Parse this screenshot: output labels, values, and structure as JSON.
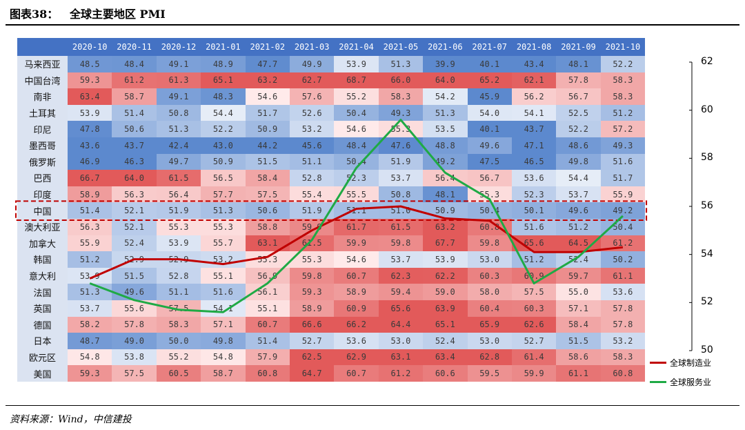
{
  "figure": {
    "title": "图表38：   全球主要地区 PMI",
    "source": "资料来源：Wind，中信建投"
  },
  "colors": {
    "header_bg": "#4472c4",
    "line_manufacturing": "#c00000",
    "line_services": "#1faa45",
    "highlight_box": "#c00000"
  },
  "chart_data": [
    {
      "type": "heatmap",
      "title": "全球主要地区 PMI",
      "columns": [
        "2020-10",
        "2020-11",
        "2020-12",
        "2021-01",
        "2021-02",
        "2021-03",
        "2021-04",
        "2021-05",
        "2021-06",
        "2021-07",
        "2021-08",
        "2021-09",
        "2021-10"
      ],
      "rows": [
        {
          "name": "马来西亚",
          "values": [
            48.5,
            48.4,
            49.1,
            48.9,
            47.7,
            49.9,
            53.9,
            51.3,
            39.9,
            40.1,
            43.4,
            48.1,
            52.2
          ]
        },
        {
          "name": "中国台湾",
          "values": [
            59.3,
            61.2,
            61.3,
            65.1,
            63.2,
            62.7,
            68.7,
            66.0,
            64.0,
            65.2,
            62.1,
            57.8,
            58.3
          ]
        },
        {
          "name": "南非",
          "values": [
            63.4,
            58.7,
            49.1,
            48.3,
            54.6,
            57.6,
            55.2,
            58.3,
            54.2,
            45.9,
            56.2,
            56.7,
            58.3
          ]
        },
        {
          "name": "土耳其",
          "values": [
            53.9,
            51.4,
            50.8,
            54.4,
            51.7,
            52.6,
            50.4,
            49.3,
            51.3,
            54.0,
            54.1,
            52.5,
            51.2
          ]
        },
        {
          "name": "印尼",
          "values": [
            47.8,
            50.6,
            51.3,
            52.2,
            50.9,
            53.2,
            54.6,
            55.3,
            53.5,
            40.1,
            43.7,
            52.2,
            57.2
          ]
        },
        {
          "name": "墨西哥",
          "values": [
            43.6,
            43.7,
            42.4,
            43.0,
            44.2,
            45.6,
            48.4,
            47.6,
            48.8,
            49.6,
            47.1,
            48.6,
            49.3
          ]
        },
        {
          "name": "俄罗斯",
          "values": [
            46.9,
            46.3,
            49.7,
            50.9,
            51.5,
            51.1,
            50.4,
            51.9,
            49.2,
            47.5,
            46.5,
            49.8,
            51.6
          ]
        },
        {
          "name": "巴西",
          "values": [
            66.7,
            64.0,
            61.5,
            56.5,
            58.4,
            52.8,
            52.3,
            53.7,
            56.4,
            56.7,
            53.6,
            54.4,
            51.7
          ]
        },
        {
          "name": "印度",
          "values": [
            58.9,
            56.3,
            56.4,
            57.7,
            57.5,
            55.4,
            55.5,
            50.8,
            48.1,
            55.3,
            52.3,
            53.7,
            55.9
          ]
        },
        {
          "name": "中国",
          "values": [
            51.4,
            52.1,
            51.9,
            51.3,
            50.6,
            51.9,
            51.1,
            51.0,
            50.9,
            50.4,
            50.1,
            49.6,
            49.2
          ]
        },
        {
          "name": "澳大利亚",
          "values": [
            56.3,
            52.1,
            55.3,
            55.3,
            58.8,
            59.9,
            61.7,
            61.5,
            63.2,
            60.8,
            51.6,
            51.2,
            50.4
          ]
        },
        {
          "name": "加拿大",
          "values": [
            55.9,
            52.4,
            53.9,
            55.7,
            63.1,
            61.5,
            59.9,
            59.8,
            67.7,
            59.8,
            65.6,
            64.5,
            61.2
          ]
        },
        {
          "name": "韩国",
          "values": [
            51.2,
            52.9,
            52.9,
            53.2,
            55.3,
            55.3,
            54.6,
            53.7,
            53.9,
            53.0,
            51.2,
            52.4,
            50.2
          ]
        },
        {
          "name": "意大利",
          "values": [
            53.9,
            51.5,
            52.8,
            55.1,
            56.9,
            59.8,
            60.7,
            62.3,
            62.2,
            60.3,
            60.9,
            59.7,
            61.1
          ]
        },
        {
          "name": "法国",
          "values": [
            51.3,
            49.6,
            51.1,
            51.6,
            56.1,
            59.3,
            58.9,
            59.4,
            59.0,
            58.0,
            57.5,
            55.0,
            53.6
          ]
        },
        {
          "name": "英国",
          "values": [
            53.7,
            55.6,
            57.5,
            54.1,
            55.1,
            58.9,
            60.9,
            65.6,
            63.9,
            60.4,
            60.3,
            57.1,
            57.8
          ]
        },
        {
          "name": "德国",
          "values": [
            58.2,
            57.8,
            58.3,
            57.1,
            60.7,
            66.6,
            66.2,
            64.4,
            65.1,
            65.9,
            62.6,
            58.4,
            57.8
          ]
        },
        {
          "name": "日本",
          "values": [
            48.7,
            49.0,
            50.0,
            49.8,
            51.4,
            52.7,
            53.6,
            53.0,
            52.4,
            53.0,
            52.7,
            51.5,
            53.2
          ]
        },
        {
          "name": "欧元区",
          "values": [
            54.8,
            53.8,
            55.2,
            54.8,
            57.9,
            62.5,
            62.9,
            63.1,
            63.4,
            62.8,
            61.4,
            58.6,
            58.3
          ]
        },
        {
          "name": "美国",
          "values": [
            59.3,
            57.5,
            60.5,
            58.7,
            60.8,
            64.7,
            60.7,
            61.2,
            60.6,
            59.5,
            59.9,
            61.1,
            60.8
          ]
        }
      ],
      "highlight_row": "中国"
    },
    {
      "type": "line",
      "x": [
        "2020-10",
        "2020-11",
        "2020-12",
        "2021-01",
        "2021-02",
        "2021-03",
        "2021-04",
        "2021-05",
        "2021-06",
        "2021-07",
        "2021-08",
        "2021-09",
        "2021-10"
      ],
      "ylim": [
        50,
        62
      ],
      "yticks": [
        "50",
        "52",
        "54",
        "56",
        "58",
        "60",
        "62"
      ],
      "series": [
        {
          "name": "全球制造业",
          "values": [
            53.0,
            53.8,
            53.8,
            53.6,
            53.9,
            55.0,
            55.9,
            56.0,
            55.5,
            55.4,
            54.1,
            54.1,
            54.3
          ]
        },
        {
          "name": "全球服务业",
          "values": [
            52.8,
            52.1,
            51.7,
            51.6,
            52.8,
            54.6,
            57.6,
            59.6,
            57.4,
            56.3,
            52.8,
            53.9,
            55.6
          ]
        }
      ]
    }
  ]
}
